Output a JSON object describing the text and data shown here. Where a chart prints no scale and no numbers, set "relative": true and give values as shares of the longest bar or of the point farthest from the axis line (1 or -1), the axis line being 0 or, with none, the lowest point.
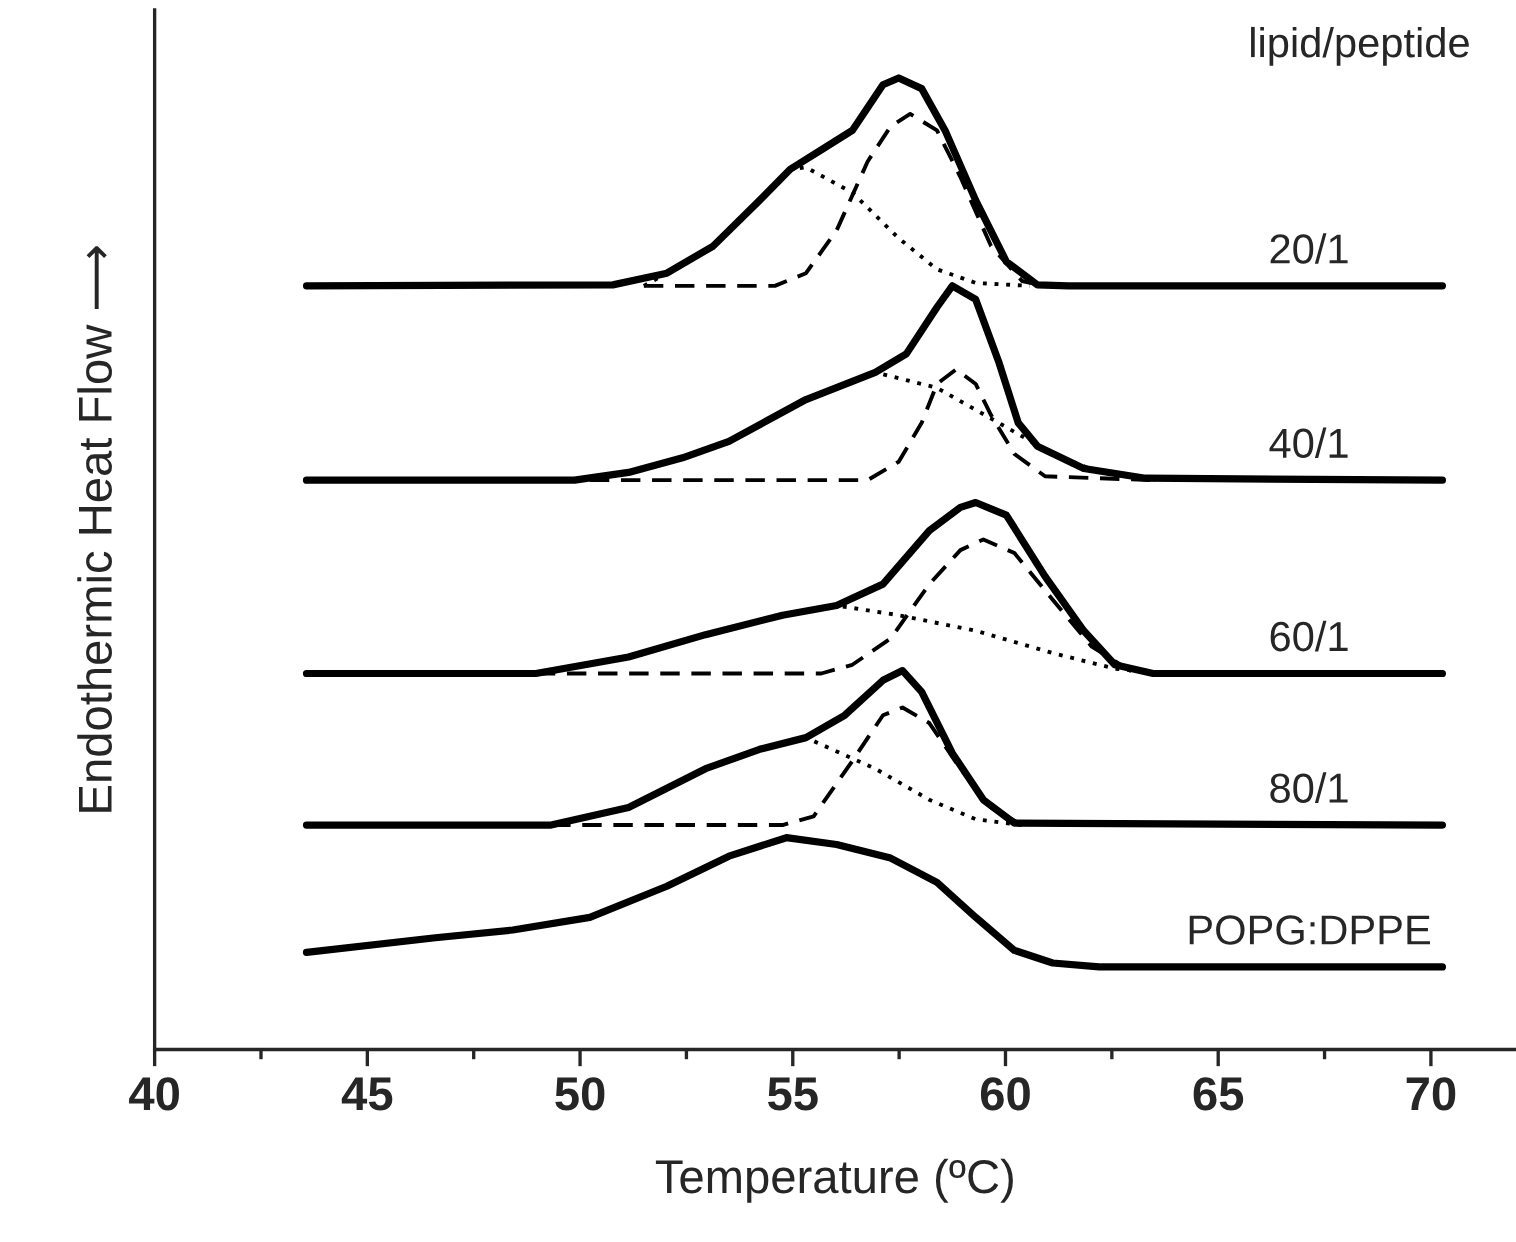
{
  "chart_data": {
    "type": "line",
    "relative": true,
    "xlabel": "Temperature (ºC)",
    "ylabel": "Endothermic Heat Flow ⟶",
    "annotations": [
      "lipid/peptide"
    ],
    "tick_labels": "x",
    "marker": "none",
    "xlim": [
      40,
      72
    ],
    "xticks": [
      40,
      {
        "value": 42.5,
        "label": null
      },
      45,
      {
        "value": 47.5,
        "label": null
      },
      50,
      {
        "value": 52.5,
        "label": null
      },
      55,
      {
        "value": 57.5,
        "label": null
      },
      60,
      {
        "value": 62.5,
        "label": null
      },
      65,
      {
        "value": 67.5,
        "label": null
      },
      70
    ],
    "series": [
      {
        "name": "20/1",
        "color": "#000000",
        "line_style": "solid",
        "x": [
          43.57,
          50.77,
          52.04,
          53.13,
          54.22,
          54.94,
          55.67,
          56.4,
          57.12,
          57.49,
          58.03,
          58.58,
          59.3,
          60.02,
          60.75,
          61.48,
          70.27
        ],
        "values": [
          0.786,
          0.787,
          0.799,
          0.827,
          0.874,
          0.906,
          0.926,
          0.946,
          0.993,
          1.0,
          0.989,
          0.946,
          0.874,
          0.811,
          0.787,
          0.786,
          0.786
        ]
      },
      {
        "color": "#000000",
        "line_style": "dashed",
        "x": [
          51.5,
          54.58,
          55.31,
          56.03,
          56.76,
          57.3,
          57.76,
          58.39,
          58.94,
          59.66,
          60.39,
          60.93
        ],
        "values": [
          0.786,
          0.786,
          0.799,
          0.843,
          0.914,
          0.95,
          0.963,
          0.946,
          0.898,
          0.827,
          0.791,
          0.786
        ]
      },
      {
        "color": "#000000",
        "line_style": "dotted",
        "x": [
          51.5,
          52.04,
          53.13,
          54.22,
          54.94,
          55.31,
          56.4,
          57.49,
          58.39,
          59.3,
          60.57
        ],
        "values": [
          0.786,
          0.799,
          0.827,
          0.874,
          0.906,
          0.908,
          0.882,
          0.835,
          0.803,
          0.789,
          0.786
        ]
      },
      {
        "name": "40/1",
        "color": "#000000",
        "line_style": "solid",
        "x": [
          43.57,
          49.87,
          51.14,
          52.41,
          53.5,
          55.31,
          56.94,
          57.67,
          58.39,
          58.75,
          59.3,
          59.84,
          60.3,
          60.75,
          61.84,
          63.29,
          70.27
        ],
        "values": [
          0.586,
          0.586,
          0.594,
          0.609,
          0.626,
          0.669,
          0.697,
          0.716,
          0.764,
          0.786,
          0.772,
          0.708,
          0.645,
          0.621,
          0.598,
          0.588,
          0.586
        ]
      },
      {
        "color": "#000000",
        "line_style": "dashed",
        "x": [
          50.23,
          56.76,
          57.49,
          58.03,
          58.39,
          58.84,
          59.3,
          59.66,
          60.21,
          60.93,
          63.47
        ],
        "values": [
          0.586,
          0.586,
          0.605,
          0.645,
          0.685,
          0.7,
          0.685,
          0.653,
          0.613,
          0.59,
          0.586
        ]
      },
      {
        "color": "#000000",
        "line_style": "dotted",
        "x": [
          50.23,
          51.14,
          52.41,
          53.5,
          55.31,
          56.94,
          58.39,
          59.84,
          61.11,
          62.2,
          63.66
        ],
        "values": [
          0.586,
          0.594,
          0.609,
          0.626,
          0.669,
          0.697,
          0.681,
          0.645,
          0.613,
          0.594,
          0.586
        ]
      },
      {
        "name": "60/1",
        "color": "#000000",
        "line_style": "solid",
        "x": [
          43.57,
          48.96,
          51.14,
          52.95,
          54.76,
          56.03,
          57.12,
          58.21,
          58.94,
          59.3,
          60.02,
          60.93,
          61.84,
          62.57,
          63.47,
          70.27
        ],
        "values": [
          0.387,
          0.387,
          0.404,
          0.427,
          0.447,
          0.457,
          0.479,
          0.534,
          0.558,
          0.563,
          0.55,
          0.487,
          0.431,
          0.396,
          0.387,
          0.387
        ]
      },
      {
        "color": "#000000",
        "line_style": "dashed",
        "x": [
          48.96,
          55.67,
          56.4,
          57.3,
          58.21,
          58.94,
          59.48,
          60.21,
          61.11,
          62.02,
          62.93,
          63.66
        ],
        "values": [
          0.387,
          0.387,
          0.396,
          0.423,
          0.479,
          0.514,
          0.525,
          0.511,
          0.463,
          0.415,
          0.39,
          0.387
        ]
      },
      {
        "color": "#000000",
        "line_style": "dotted",
        "x": [
          48.96,
          51.14,
          52.95,
          54.76,
          56.03,
          57.49,
          59.3,
          61.11,
          62.57,
          63.66
        ],
        "values": [
          0.387,
          0.404,
          0.427,
          0.447,
          0.457,
          0.447,
          0.431,
          0.408,
          0.392,
          0.387
        ]
      },
      {
        "name": "80/1",
        "color": "#000000",
        "line_style": "solid",
        "x": [
          43.57,
          49.32,
          51.14,
          52.95,
          54.22,
          55.31,
          56.22,
          57.12,
          57.58,
          58.03,
          58.75,
          59.48,
          60.21,
          70.27
        ],
        "values": [
          0.231,
          0.231,
          0.249,
          0.289,
          0.309,
          0.321,
          0.344,
          0.38,
          0.39,
          0.368,
          0.305,
          0.257,
          0.233,
          0.231
        ]
      },
      {
        "color": "#000000",
        "line_style": "dashed",
        "x": [
          49.32,
          54.76,
          55.49,
          56.4,
          57.12,
          57.58,
          58.21,
          58.94,
          59.66,
          60.39
        ],
        "values": [
          0.231,
          0.231,
          0.24,
          0.297,
          0.344,
          0.352,
          0.336,
          0.289,
          0.249,
          0.231
        ]
      },
      {
        "color": "#000000",
        "line_style": "dotted",
        "x": [
          49.32,
          51.14,
          52.95,
          54.22,
          55.31,
          56.94,
          58.21,
          59.3,
          60.39
        ],
        "values": [
          0.231,
          0.249,
          0.289,
          0.309,
          0.321,
          0.289,
          0.257,
          0.237,
          0.231
        ]
      },
      {
        "name": "POPG:DPPE",
        "color": "#000000",
        "line_style": "solid",
        "x": [
          43.57,
          46.6,
          48.42,
          50.23,
          52.04,
          53.5,
          54.85,
          56.03,
          57.3,
          58.39,
          59.3,
          60.21,
          61.11,
          62.2,
          70.27
        ],
        "values": [
          0.1,
          0.115,
          0.123,
          0.136,
          0.168,
          0.199,
          0.218,
          0.211,
          0.197,
          0.172,
          0.136,
          0.102,
          0.089,
          0.085,
          0.085
        ]
      }
    ]
  }
}
